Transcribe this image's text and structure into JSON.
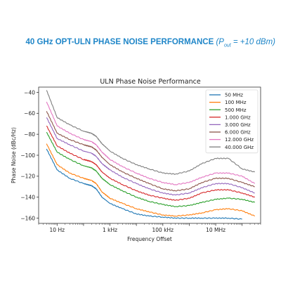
{
  "banner": {
    "headline": "40 GHz OPT-ULN PHASE NOISE PERFORMANCE",
    "condition_open": "(P",
    "condition_sub": "out",
    "condition_close": " = +10 dBm)"
  },
  "chart_data": {
    "type": "line",
    "title": "ULN Phase Noise Performance",
    "xlabel": "Frequency Offset",
    "ylabel": "Phase Noise (dBc/Hz)",
    "xscale": "log",
    "xlim": [
      2,
      500000000
    ],
    "ylim": [
      -165,
      -35
    ],
    "x_ticks": [
      {
        "value": 10,
        "label": "10 Hz"
      },
      {
        "value": 1000,
        "label": "1 kHz"
      },
      {
        "value": 100000,
        "label": "100 kHz"
      },
      {
        "value": 10000000,
        "label": "10 MHz"
      }
    ],
    "y_ticks": [
      {
        "value": -40,
        "label": "−40"
      },
      {
        "value": -60,
        "label": "−60"
      },
      {
        "value": -80,
        "label": "−80"
      },
      {
        "value": -100,
        "label": "−100"
      },
      {
        "value": -120,
        "label": "−120"
      },
      {
        "value": -140,
        "label": "−140"
      },
      {
        "value": -160,
        "label": "−160"
      }
    ],
    "grid": false,
    "legend_position": "top-right",
    "x": [
      4,
      10,
      30,
      100,
      200,
      300,
      500,
      1000,
      3000,
      10000,
      30000,
      100000,
      300000,
      1000000,
      3000000,
      10000000,
      30000000,
      100000000,
      300000000
    ],
    "series": [
      {
        "name": "50 MHz",
        "color": "#1f77b4",
        "values": [
          -94,
          -114,
          -122,
          -127,
          -129,
          -132,
          -140,
          -146,
          -151,
          -156,
          -158,
          -159,
          -160,
          -160,
          -160,
          -160,
          -160,
          -161,
          null
        ]
      },
      {
        "name": "100 MHz",
        "color": "#ff7f0e",
        "values": [
          -89,
          -109,
          -117,
          -122,
          -124,
          -127,
          -135,
          -141,
          -146,
          -151,
          -154,
          -157,
          -158,
          -157,
          -155,
          -152,
          -151,
          -153,
          -158
        ]
      },
      {
        "name": "500 MHz",
        "color": "#2ca02c",
        "values": [
          -78,
          -97,
          -104,
          -110,
          -112,
          -115,
          -122,
          -128,
          -134,
          -140,
          -144,
          -147,
          -149,
          -148,
          -145,
          -142,
          -141,
          -142,
          -145
        ]
      },
      {
        "name": "1.000 GHz",
        "color": "#d62728",
        "values": [
          -72,
          -91,
          -98,
          -104,
          -106,
          -109,
          -116,
          -122,
          -128,
          -134,
          -138,
          -141,
          -143,
          -141,
          -136,
          -133,
          -133,
          -136,
          -140
        ]
      },
      {
        "name": "3.000 GHz",
        "color": "#9467bd",
        "values": [
          -64,
          -84,
          -90,
          -96,
          -98,
          -101,
          -108,
          -114,
          -121,
          -127,
          -132,
          -136,
          -138,
          -136,
          -131,
          -127,
          -127,
          -131,
          -136
        ]
      },
      {
        "name": "6.000 GHz",
        "color": "#8c564b",
        "values": [
          -58,
          -79,
          -85,
          -90,
          -92,
          -95,
          -102,
          -109,
          -116,
          -122,
          -127,
          -132,
          -134,
          -132,
          -126,
          -122,
          -122,
          -126,
          -130
        ]
      },
      {
        "name": "12.000 GHz",
        "color": "#e377c2",
        "values": [
          -49,
          -72,
          -79,
          -85,
          -87,
          -90,
          -97,
          -104,
          -111,
          -117,
          -122,
          -126,
          -128,
          -126,
          -121,
          -117,
          -117,
          -120,
          -127
        ]
      },
      {
        "name": "40.000 GHz",
        "color": "#7f7f7f",
        "values": [
          -38,
          -64,
          -71,
          -77,
          -79,
          -82,
          -89,
          -96,
          -103,
          -109,
          -113,
          -117,
          -118,
          -115,
          -108,
          -103,
          -103,
          -113,
          -116
        ]
      }
    ]
  }
}
